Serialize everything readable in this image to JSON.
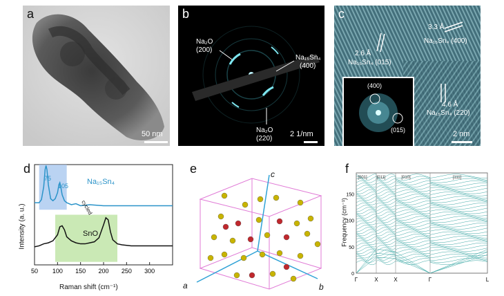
{
  "panel_labels": {
    "a": "a",
    "b": "b",
    "c": "c",
    "d": "d",
    "e": "e",
    "f": "f"
  },
  "panel_a": {
    "scale_bar": "50 nm"
  },
  "panel_b": {
    "scale_bar": "2 1/nm",
    "ann_na2o_200_name": "Na₂O",
    "ann_na2o_200_idx": "(200)",
    "ann_na15sn4_name": "Na₁₅Sn₄",
    "ann_na15sn4_idx": "(400)",
    "ann_na2o_220_name": "Na₂O",
    "ann_na2o_220_idx": "(220)"
  },
  "panel_c": {
    "scale_bar": "2 nm",
    "ann1_d": "3.3 Å",
    "ann1_phase": "Na₁₅Sn₄ (400)",
    "ann2_d": "2.6 Å",
    "ann2_phase": "Na₁₅Sn₄ (015)",
    "ann3_d": "4.6 Å",
    "ann3_phase": "Na₁₅Sn₄ (220)",
    "fft_spot1": "(400)",
    "fft_spot2": "(015)"
  },
  "panel_d": {
    "xlabel": "Raman shift (cm⁻¹)",
    "ylabel": "Intensity (a. u.)",
    "xticks": [
      "50",
      "100",
      "150",
      "200",
      "250",
      "300"
    ],
    "phase_top": "Na₁₅Sn₄",
    "phase_bottom": "SnO",
    "peak1": "75",
    "peak2": "105",
    "arrow_label": "cycled",
    "colors": {
      "top": "#2a93c9",
      "bottom": "#111111",
      "top_box": "#a9c8ef",
      "bottom_box": "#bde3a3"
    }
  },
  "panel_e": {
    "axis_a": "a",
    "axis_b": "b",
    "axis_c": "c",
    "colors": {
      "cell": "#e07ad6",
      "axes": "#2fa2d6",
      "na": "#c8b400",
      "sn": "#c0282d"
    }
  },
  "panel_f": {
    "ylabel": "Frequency (cm⁻¹)",
    "yticks": [
      "0",
      "50",
      "100",
      "150"
    ],
    "kpoints": [
      "Γ",
      "X",
      "X",
      "Γ",
      "L"
    ],
    "header_labels": [
      "[001]",
      "[011]",
      "[010]",
      "[111]"
    ],
    "colors": {
      "lines": "#3aa7a4"
    }
  },
  "chart_data": {
    "type": "line",
    "xlabel": "Raman shift (cm⁻¹)",
    "ylabel": "Intensity (a. u.)",
    "xlim": [
      50,
      350
    ],
    "series": [
      {
        "name": "Na₁₅Sn₄",
        "x": [
          50,
          60,
          65,
          70,
          73,
          75,
          77,
          80,
          85,
          90,
          95,
          100,
          103,
          105,
          107,
          110,
          115,
          120,
          130,
          140,
          150,
          170,
          200,
          250,
          300,
          350
        ],
        "y": [
          0.62,
          0.62,
          0.65,
          0.78,
          0.95,
          0.99,
          0.95,
          0.8,
          0.66,
          0.64,
          0.66,
          0.72,
          0.8,
          0.82,
          0.78,
          0.7,
          0.64,
          0.62,
          0.6,
          0.61,
          0.59,
          0.6,
          0.59,
          0.59,
          0.59,
          0.59
        ]
      },
      {
        "name": "SnO",
        "x": [
          50,
          60,
          70,
          80,
          90,
          100,
          105,
          110,
          115,
          120,
          130,
          140,
          150,
          160,
          170,
          180,
          190,
          200,
          205,
          210,
          215,
          220,
          230,
          240,
          260,
          300,
          350
        ],
        "y": [
          0.18,
          0.19,
          0.21,
          0.22,
          0.24,
          0.3,
          0.38,
          0.39,
          0.35,
          0.28,
          0.24,
          0.22,
          0.21,
          0.21,
          0.22,
          0.23,
          0.27,
          0.4,
          0.47,
          0.45,
          0.33,
          0.25,
          0.21,
          0.2,
          0.19,
          0.19,
          0.19
        ]
      }
    ],
    "annotations": [
      "75",
      "105"
    ]
  }
}
